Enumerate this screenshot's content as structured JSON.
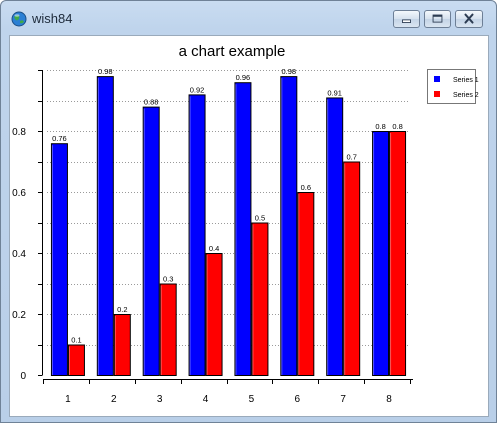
{
  "window": {
    "title": "wish84",
    "minimize_icon": "minimize-icon",
    "maximize_icon": "maximize-icon",
    "close_icon": "close-icon",
    "app_icon": "globe-icon"
  },
  "chart_data": {
    "type": "bar",
    "title": "a chart example",
    "xlabel": "",
    "ylabel": "",
    "categories": [
      "1",
      "2",
      "3",
      "4",
      "5",
      "6",
      "7",
      "8"
    ],
    "series": [
      {
        "name": "Series 1",
        "color": "#0000ff",
        "values": [
          0.76,
          0.98,
          0.88,
          0.92,
          0.96,
          0.98,
          0.91,
          0.8
        ],
        "labels": [
          "0.76",
          "0.98",
          "0.88",
          "0.92",
          "0.96",
          "0.98",
          "0.91",
          "0.8"
        ]
      },
      {
        "name": "Series 2",
        "color": "#ff0000",
        "values": [
          0.1,
          0.2,
          0.3,
          0.4,
          0.5,
          0.6,
          0.7,
          0.8
        ],
        "labels": [
          "0.1",
          "0.2",
          "0.3",
          "0.4",
          "0.5",
          "0.6",
          "0.7",
          "0.8"
        ]
      }
    ],
    "ylim": [
      0,
      1
    ],
    "yticks": [
      0,
      0.2,
      0.4,
      0.6,
      0.8
    ],
    "ytick_labels": [
      "0",
      "0.2",
      "0.4",
      "0.6",
      "0.8"
    ],
    "grid": true,
    "legend_position": "top-right"
  }
}
